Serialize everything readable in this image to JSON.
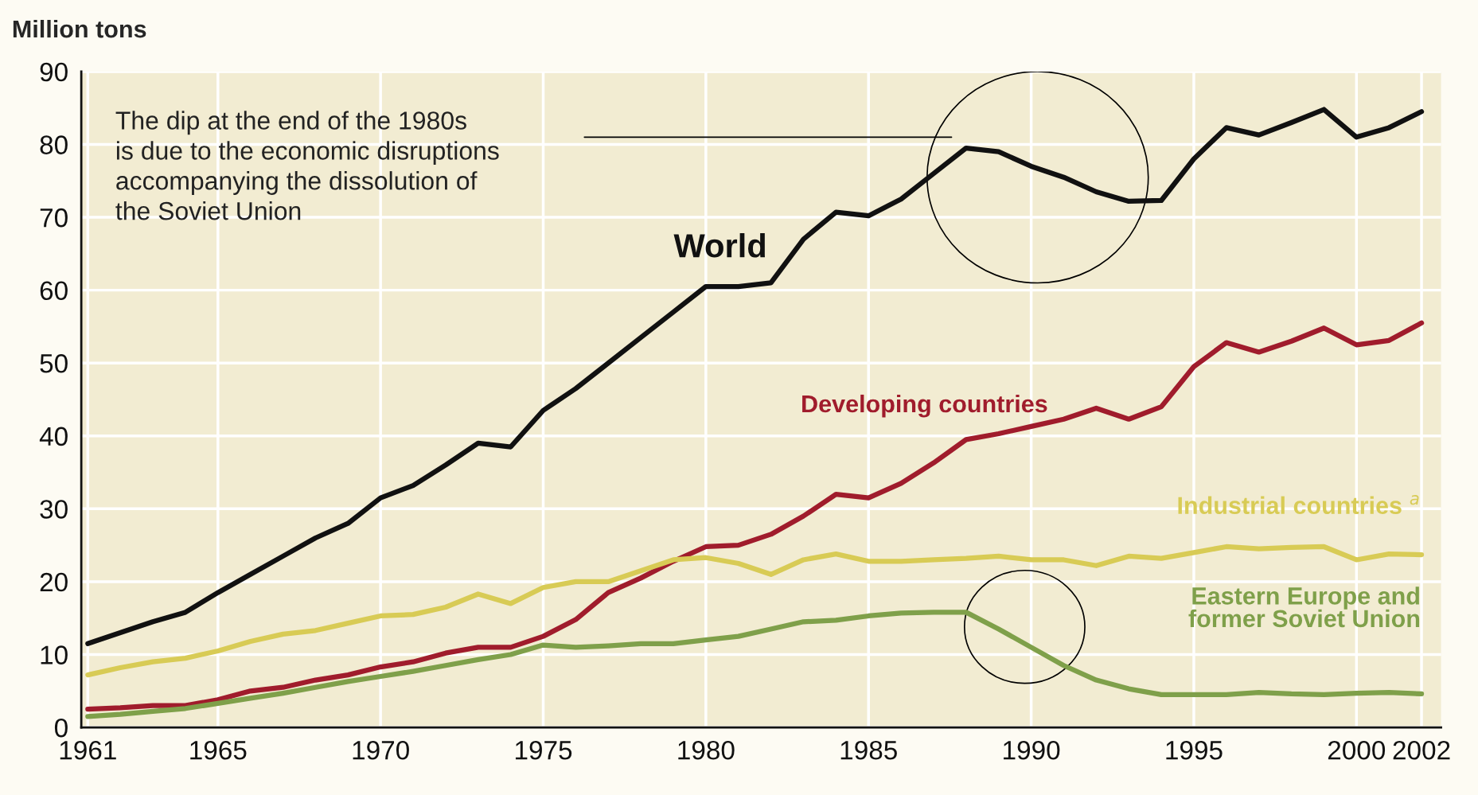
{
  "chart_data": {
    "type": "line",
    "ylabel": "Million tons",
    "x": [
      1961,
      1962,
      1963,
      1964,
      1965,
      1966,
      1967,
      1968,
      1969,
      1970,
      1971,
      1972,
      1973,
      1974,
      1975,
      1976,
      1977,
      1978,
      1979,
      1980,
      1981,
      1982,
      1983,
      1984,
      1985,
      1986,
      1987,
      1988,
      1989,
      1990,
      1991,
      1992,
      1993,
      1994,
      1995,
      1996,
      1997,
      1998,
      1999,
      2000,
      2001,
      2002
    ],
    "series": [
      {
        "name": "World",
        "color": "#111111",
        "values": [
          11.5,
          13,
          14.5,
          15.8,
          18.5,
          21,
          23.5,
          26,
          28,
          31.5,
          33.2,
          36,
          39,
          38.5,
          43.5,
          46.5,
          50,
          53.5,
          57,
          60.5,
          60.5,
          61,
          67,
          70.7,
          70.2,
          72.5,
          76,
          79.5,
          79,
          77,
          75.5,
          73.5,
          72.2,
          72.3,
          78,
          82.3,
          81.3,
          83,
          84.8,
          81,
          82.3,
          84.5
        ]
      },
      {
        "name": "Developing countries",
        "color": "#a01c2c",
        "values": [
          2.5,
          2.7,
          3,
          3,
          3.8,
          5,
          5.5,
          6.5,
          7.2,
          8.3,
          9,
          10.2,
          11,
          11,
          12.5,
          14.8,
          18.5,
          20.5,
          22.8,
          24.8,
          25,
          26.5,
          29,
          32,
          31.5,
          33.5,
          36.3,
          39.5,
          40.3,
          41.3,
          42.3,
          43.8,
          42.3,
          44,
          49.5,
          52.8,
          51.5,
          53,
          54.8,
          52.5,
          53.1,
          55.5
        ]
      },
      {
        "name": "Industrial countries $^{a}$",
        "color": "#d8cb55",
        "values": [
          7.2,
          8.2,
          9,
          9.5,
          10.5,
          11.8,
          12.8,
          13.3,
          14.3,
          15.3,
          15.5,
          16.5,
          18.3,
          17,
          19.2,
          20,
          20,
          21.5,
          23,
          23.3,
          22.5,
          21,
          23,
          23.8,
          22.8,
          22.8,
          23,
          23.2,
          23.5,
          23,
          23,
          22.2,
          23.5,
          23.2,
          24,
          24.8,
          24.5,
          24.7,
          24.8,
          23,
          23.8,
          23.7
        ]
      },
      {
        "name": "Eastern Europe and\nformer Soviet Union",
        "color": "#7fa04a",
        "values": [
          1.5,
          1.8,
          2.2,
          2.6,
          3.3,
          4,
          4.7,
          5.5,
          6.3,
          7,
          7.7,
          8.5,
          9.3,
          10,
          11.3,
          11,
          11.2,
          11.5,
          11.5,
          12,
          12.5,
          13.5,
          14.5,
          14.7,
          15.3,
          15.7,
          15.8,
          15.8,
          13.5,
          11,
          8.5,
          6.5,
          5.3,
          4.5,
          4.5,
          4.5,
          4.8,
          4.6,
          4.5,
          4.7,
          4.8,
          4.6
        ]
      }
    ],
    "xlim": [
      1960.8,
      2002.6
    ],
    "ylim": [
      0,
      90
    ],
    "xticks": [
      1961,
      1965,
      1970,
      1975,
      1980,
      1985,
      1990,
      1995,
      2000,
      2002
    ],
    "yticks": [
      0,
      10,
      20,
      30,
      40,
      50,
      60,
      70,
      80,
      90
    ],
    "grid": true,
    "line_style": "solid",
    "marker": "none",
    "annotations": [
      "The dip at the end of the 1980s\nis due to the economic disruptions\naccompanying the dissolution of\nthe Soviet Union"
    ]
  }
}
